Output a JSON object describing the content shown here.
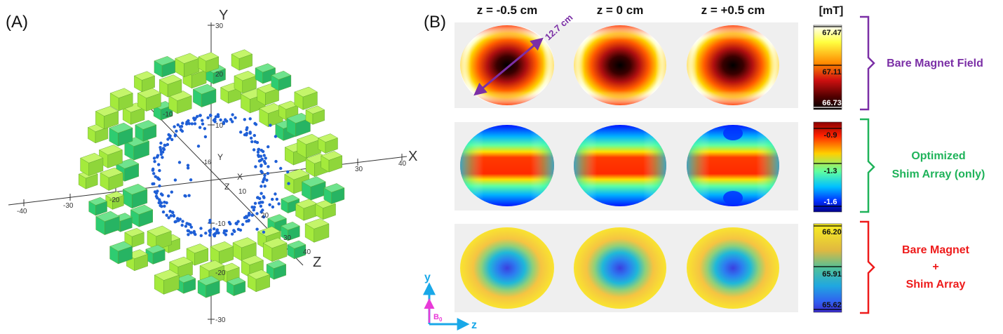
{
  "panel_a": {
    "label": "(A)",
    "axes": {
      "y_label": "Y",
      "x_label": "X",
      "z_label": "Z",
      "y_ticks": [
        "30",
        "20",
        "10",
        "-10",
        "-20",
        "-30"
      ],
      "x_ticks": [
        "-40",
        "-30",
        "-20",
        "30",
        "40"
      ],
      "z_ticks": [
        "-10",
        "10",
        "20",
        "30",
        "40"
      ],
      "inner_labels": {
        "y": "Y",
        "x": "X",
        "z": "Z",
        "neg16": "-16"
      }
    },
    "colors": {
      "magnet_light": "#a4ea3c",
      "magnet_dark": "#2ecc71",
      "dots": "#1f5fd6"
    }
  },
  "panel_b": {
    "label": "(B)",
    "column_headers": [
      "z = -0.5 cm",
      "z = 0 cm",
      "z = +0.5 cm"
    ],
    "diameter_label": "12.7 cm",
    "units": "[mT]",
    "rows": [
      {
        "title_lines": [
          "Bare Magnet Field"
        ],
        "color": "#7b2fa6",
        "ticks": [
          "67.47",
          "67.11",
          "66.73"
        ]
      },
      {
        "title_lines": [
          "Optimized",
          "Shim Array (only)"
        ],
        "color": "#1fb35a",
        "ticks": [
          "-0.9",
          "-1.3",
          "-1.6"
        ]
      },
      {
        "title_lines": [
          "Bare Magnet",
          "+",
          "Shim Array"
        ],
        "color": "#ee1b1b",
        "ticks": [
          "66.20",
          "65.91",
          "65.62"
        ]
      }
    ],
    "axes_glyph": {
      "y": "y",
      "z": "z",
      "b0": "B",
      "b0_sub": "0"
    }
  }
}
